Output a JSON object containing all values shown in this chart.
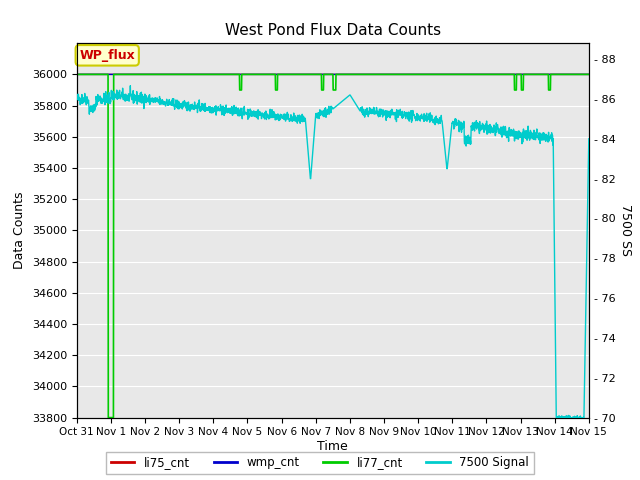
{
  "title": "West Pond Flux Data Counts",
  "xlabel": "Time",
  "ylabel_left": "Data Counts",
  "ylabel_right": "7500 SS",
  "legend_label": "WP_flux",
  "ylim_left": [
    33800,
    36200
  ],
  "ylim_right": [
    70,
    88.8
  ],
  "x_start": 0,
  "x_end": 15,
  "x_ticks": [
    0,
    1,
    2,
    3,
    4,
    5,
    6,
    7,
    8,
    9,
    10,
    11,
    12,
    13,
    14,
    15
  ],
  "x_tick_labels": [
    "Oct 31",
    "Nov 1",
    "Nov 2",
    "Nov 3",
    "Nov 4",
    "Nov 5",
    "Nov 6",
    "Nov 7",
    "Nov 8",
    "Nov 9",
    "Nov 10",
    "Nov 11",
    "Nov 12",
    "Nov 13",
    "Nov 14",
    "Nov 15"
  ],
  "fig_bg_color": "#ffffff",
  "plot_bg_color": "#e8e8e8",
  "grid_color": "#ffffff",
  "legend_box_facecolor": "#ffffcc",
  "legend_box_edgecolor": "#cccc00",
  "legend_text_color": "#cc0000",
  "series_colors": {
    "li75_cnt": "#cc0000",
    "wmp_cnt": "#0000cc",
    "li77_cnt": "#00cc00",
    "signal_7500": "#00cccc"
  },
  "yticks_left": [
    33800,
    34000,
    34200,
    34400,
    34600,
    34800,
    35000,
    35200,
    35400,
    35600,
    35800,
    36000
  ],
  "yticks_right": [
    70,
    72,
    74,
    76,
    78,
    80,
    82,
    84,
    86,
    88
  ],
  "right_tick_labels": [
    "70",
    "72",
    "74",
    "76",
    "78",
    "80",
    "82",
    "84",
    "86",
    "88"
  ]
}
